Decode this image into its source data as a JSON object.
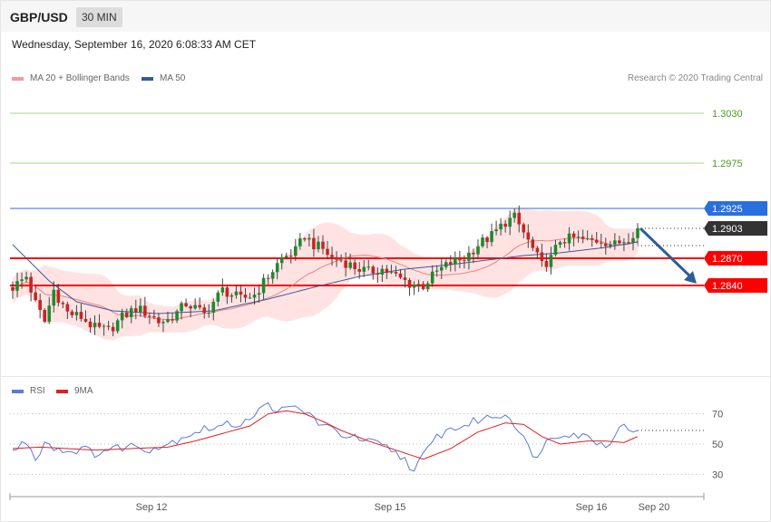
{
  "header": {
    "symbol": "GBP/USD",
    "timeframe": "30 MIN"
  },
  "date": "Wednesday, September 16, 2020 6:08:33 AM CET",
  "copyright": "Research © 2020 Trading Central",
  "legend": {
    "ma20": "MA 20 + Bollinger Bands",
    "ma50": "MA 50",
    "rsi": "RSI",
    "ma9": "9MA"
  },
  "colors": {
    "support": "#ff0000",
    "resistance_green": "#a6d785",
    "resistance_blue": "#2a6fe0",
    "current": "#333333",
    "bull": "#1e8a2e",
    "bear": "#cc2222",
    "ma20": "#f08080",
    "ma50": "#3a5a9a",
    "bands": "#ffd9d9",
    "rsi": "#5b7bd6",
    "rsi_ma": "#e02020",
    "arrow": "#2f5d9a"
  },
  "chart_data": [
    {
      "type": "candlestick",
      "y_range": [
        1.2745,
        1.306
      ],
      "levels": [
        {
          "value": 1.303,
          "label": "1.3030",
          "kind": "resistance-green"
        },
        {
          "value": 1.2975,
          "label": "1.2975",
          "kind": "resistance-green"
        },
        {
          "value": 1.2925,
          "label": "1.2925",
          "kind": "resistance-blue"
        },
        {
          "value": 1.2903,
          "label": "1.2903",
          "kind": "current"
        },
        {
          "value": 1.287,
          "label": "1.2870",
          "kind": "support"
        },
        {
          "value": 1.284,
          "label": "1.2840",
          "kind": "support"
        }
      ],
      "x_ticks": [
        "Sep 12",
        "Sep 15",
        "Sep 16",
        "Sep 20"
      ],
      "forecast": {
        "from": 1.2903,
        "to": 1.284
      },
      "anchors": [
        [
          0,
          1.2838
        ],
        [
          3,
          1.285
        ],
        [
          5,
          1.282
        ],
        [
          7,
          1.28
        ],
        [
          9,
          1.2835
        ],
        [
          12,
          1.281
        ],
        [
          15,
          1.2805
        ],
        [
          18,
          1.2793
        ],
        [
          21,
          1.279
        ],
        [
          24,
          1.2805
        ],
        [
          27,
          1.2815
        ],
        [
          30,
          1.2808
        ],
        [
          32,
          1.28
        ],
        [
          34,
          1.2802
        ],
        [
          36,
          1.281
        ],
        [
          38,
          1.282
        ],
        [
          40,
          1.2815
        ],
        [
          42,
          1.2808
        ],
        [
          44,
          1.2822
        ],
        [
          46,
          1.2835
        ],
        [
          48,
          1.283
        ],
        [
          50,
          1.2825
        ],
        [
          53,
          1.283
        ],
        [
          56,
          1.285
        ],
        [
          59,
          1.287
        ],
        [
          62,
          1.2878
        ],
        [
          64,
          1.2895
        ],
        [
          66,
          1.2885
        ],
        [
          68,
          1.288
        ],
        [
          70,
          1.287
        ],
        [
          72,
          1.2868
        ],
        [
          75,
          1.286
        ],
        [
          78,
          1.2855
        ],
        [
          81,
          1.2858
        ],
        [
          84,
          1.285
        ],
        [
          87,
          1.2842
        ],
        [
          90,
          1.284
        ],
        [
          93,
          1.2855
        ],
        [
          96,
          1.2865
        ],
        [
          99,
          1.287
        ],
        [
          102,
          1.2885
        ],
        [
          105,
          1.2895
        ],
        [
          108,
          1.291
        ],
        [
          110,
          1.2915
        ],
        [
          112,
          1.2898
        ],
        [
          114,
          1.288
        ],
        [
          116,
          1.2862
        ],
        [
          118,
          1.287
        ],
        [
          120,
          1.289
        ],
        [
          123,
          1.2892
        ],
        [
          126,
          1.2889
        ],
        [
          129,
          1.289
        ],
        [
          132,
          1.2885
        ],
        [
          135,
          1.2893
        ],
        [
          137,
          1.2903
        ]
      ],
      "ma50_path": [
        [
          0,
          1.2885
        ],
        [
          8,
          1.2845
        ],
        [
          14,
          1.2822
        ],
        [
          22,
          1.2812
        ],
        [
          32,
          1.2809
        ],
        [
          44,
          1.2812
        ],
        [
          56,
          1.2825
        ],
        [
          66,
          1.2838
        ],
        [
          76,
          1.285
        ],
        [
          86,
          1.2858
        ],
        [
          96,
          1.2863
        ],
        [
          104,
          1.2868
        ],
        [
          112,
          1.2873
        ],
        [
          120,
          1.2876
        ],
        [
          130,
          1.2882
        ],
        [
          137,
          1.2888
        ]
      ]
    },
    {
      "type": "line",
      "name": "RSI",
      "y_ticks": [
        30,
        50,
        70
      ],
      "y_range": [
        20,
        80
      ],
      "anchors": [
        [
          0,
          45
        ],
        [
          3,
          52
        ],
        [
          5,
          40
        ],
        [
          7,
          52
        ],
        [
          9,
          48
        ],
        [
          12,
          45
        ],
        [
          15,
          47
        ],
        [
          18,
          44
        ],
        [
          22,
          47
        ],
        [
          26,
          49
        ],
        [
          30,
          47
        ],
        [
          34,
          50
        ],
        [
          38,
          56
        ],
        [
          42,
          60
        ],
        [
          46,
          62
        ],
        [
          50,
          64
        ],
        [
          53,
          70
        ],
        [
          56,
          76
        ],
        [
          59,
          72
        ],
        [
          62,
          74
        ],
        [
          65,
          70
        ],
        [
          68,
          62
        ],
        [
          71,
          58
        ],
        [
          74,
          55
        ],
        [
          77,
          52
        ],
        [
          80,
          50
        ],
        [
          83,
          46
        ],
        [
          86,
          40
        ],
        [
          88,
          32
        ],
        [
          90,
          42
        ],
        [
          93,
          55
        ],
        [
          96,
          60
        ],
        [
          99,
          62
        ],
        [
          102,
          66
        ],
        [
          105,
          68
        ],
        [
          108,
          70
        ],
        [
          110,
          64
        ],
        [
          112,
          55
        ],
        [
          114,
          40
        ],
        [
          116,
          48
        ],
        [
          118,
          54
        ],
        [
          121,
          58
        ],
        [
          124,
          56
        ],
        [
          127,
          54
        ],
        [
          130,
          48
        ],
        [
          133,
          62
        ],
        [
          135,
          60
        ],
        [
          137,
          59
        ]
      ],
      "ma_anchors": [
        [
          0,
          47
        ],
        [
          6,
          48
        ],
        [
          12,
          47
        ],
        [
          18,
          46
        ],
        [
          26,
          47
        ],
        [
          34,
          48
        ],
        [
          40,
          52
        ],
        [
          46,
          57
        ],
        [
          52,
          62
        ],
        [
          56,
          70
        ],
        [
          60,
          72
        ],
        [
          64,
          70
        ],
        [
          68,
          65
        ],
        [
          72,
          59
        ],
        [
          78,
          52
        ],
        [
          84,
          46
        ],
        [
          90,
          40
        ],
        [
          96,
          47
        ],
        [
          102,
          58
        ],
        [
          108,
          64
        ],
        [
          112,
          63
        ],
        [
          116,
          55
        ],
        [
          120,
          50
        ],
        [
          126,
          52
        ],
        [
          130,
          52
        ],
        [
          134,
          51
        ],
        [
          137,
          55
        ]
      ]
    }
  ]
}
